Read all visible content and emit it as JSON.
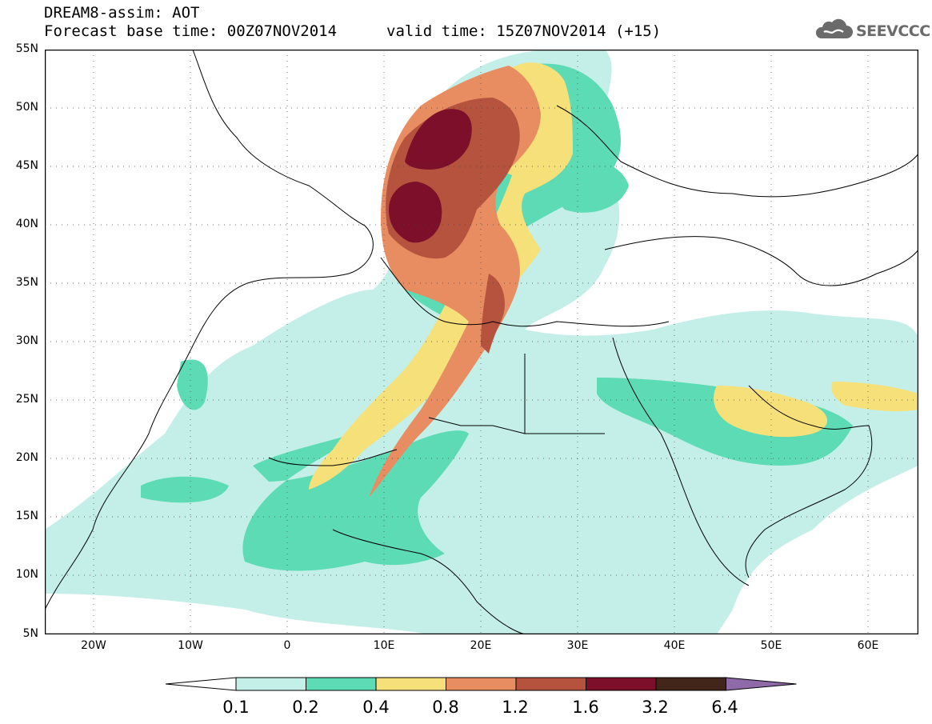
{
  "header": {
    "title": "DREAM8-assim: AOT",
    "base_time": "Forecast base time: 00Z07NOV2014",
    "valid_time": "valid time: 15Z07NOV2014 (+15)"
  },
  "logo": {
    "text": "SEEVCCC",
    "icon": "cloud-icon"
  },
  "map": {
    "y_ticks": [
      "55N",
      "50N",
      "45N",
      "40N",
      "35N",
      "30N",
      "25N",
      "20N",
      "15N",
      "10N",
      "5N"
    ],
    "x_ticks": [
      "20W",
      "10W",
      "0",
      "10E",
      "20E",
      "30E",
      "40E",
      "50E",
      "60E"
    ]
  },
  "colorbar": {
    "labels": [
      "0.1",
      "0.2",
      "0.4",
      "0.8",
      "1.2",
      "1.6",
      "3.2",
      "6.4"
    ],
    "colors": [
      "#ffffff",
      "#c4efe9",
      "#5ddbb5",
      "#f6e07a",
      "#e88d62",
      "#b5533f",
      "#7d0f2a",
      "#43261a",
      "#8e6aa8"
    ]
  }
}
